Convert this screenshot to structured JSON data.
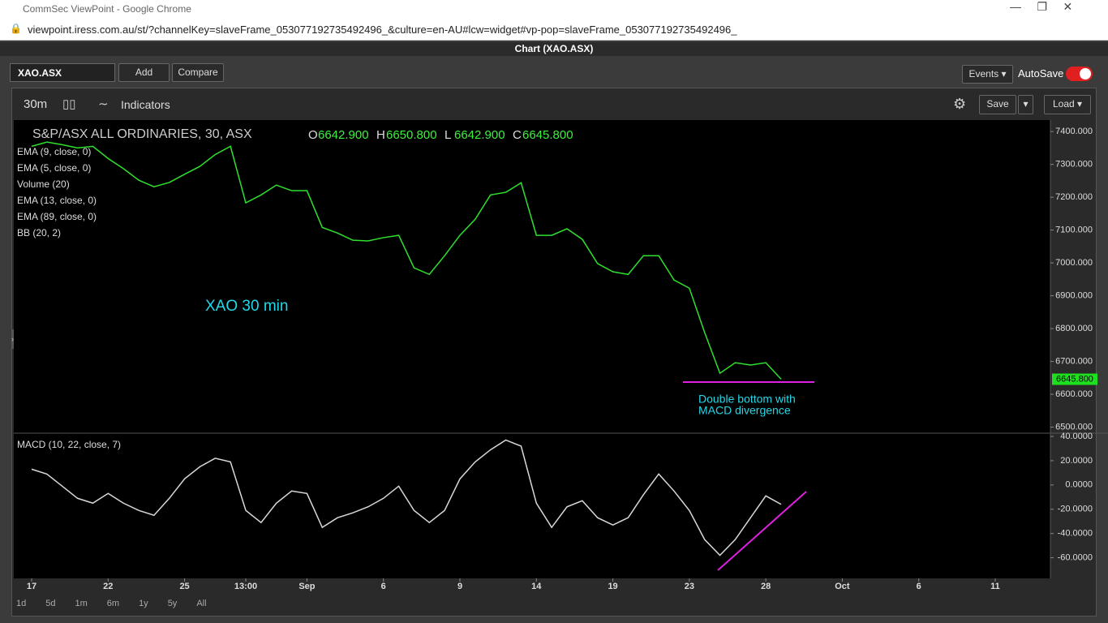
{
  "window": {
    "title": "CommSec ViewPoint - Google Chrome",
    "url": "viewpoint.iress.com.au/st/?channelKey=slaveFrame_053077192735492496_&culture=en-AU#lcw=widget#vp-pop=slaveFrame_053077192735492496_"
  },
  "panel": {
    "title": "Chart (XAO.ASX)",
    "symbol": "XAO.ASX",
    "add": "Add",
    "compare": "Compare",
    "events": "Events",
    "autosave": "AutoSave"
  },
  "toolbar": {
    "interval": "30m",
    "indicators": "Indicators",
    "save": "Save",
    "load": "Load"
  },
  "ranges": [
    "1d",
    "5d",
    "1m",
    "6m",
    "1y",
    "5y",
    "All"
  ],
  "legend": {
    "instrument": "S&P/ASX ALL ORDINARIES, 30, ASX",
    "open_key": "O",
    "open": "6642.900",
    "high_key": "H",
    "high": "6650.800",
    "low_key": "L",
    "low": "6642.900",
    "close_key": "C",
    "close": "6645.800",
    "indicators": [
      "EMA (9, close, 0)",
      "EMA (5, close, 0)",
      "Volume (20)",
      "EMA (13, close, 0)",
      "EMA (89, close, 0)",
      "BB (20, 2)"
    ]
  },
  "chart_data": [
    {
      "type": "line",
      "color": "#2fe02f",
      "categories": [
        "17",
        null,
        null,
        null,
        null,
        "22",
        null,
        null,
        null,
        null,
        "25",
        null,
        null,
        null,
        "13:00",
        null,
        null,
        null,
        "Sep",
        null,
        null,
        null,
        null,
        "6",
        null,
        null,
        null,
        null,
        "9",
        null,
        null,
        null,
        null,
        "14",
        null,
        null,
        null,
        null,
        "19",
        null,
        null,
        null,
        null,
        "23",
        null,
        null,
        null,
        null,
        "28",
        null,
        null,
        null,
        null,
        "Oct",
        null,
        null,
        null,
        null,
        "6",
        null,
        null,
        null,
        null,
        "11",
        null,
        null,
        null
      ],
      "values": [
        7355,
        7368,
        7360,
        7350,
        7355,
        7318,
        7287,
        7252,
        7232,
        7245,
        7270,
        7294,
        7330,
        7355,
        7183,
        7207,
        7237,
        7220,
        7220,
        7108,
        7091,
        7069,
        7067,
        7077,
        7084,
        6985,
        6965,
        7022,
        7084,
        7133,
        7207,
        7215,
        7244,
        7084,
        7084,
        7104,
        7072,
        6998,
        6973,
        6965,
        7022,
        7022,
        6948,
        6923,
        6788,
        6664,
        6696,
        6689,
        6696,
        6646,
        null,
        null,
        null,
        null,
        null,
        null,
        null,
        null,
        null,
        null,
        null,
        null,
        null,
        null,
        null,
        null,
        null
      ],
      "ylim": [
        6484,
        7435
      ],
      "yticks": [
        {
          "value": 7400,
          "label": "7400.000"
        },
        {
          "value": 7300,
          "label": "7300.000"
        },
        {
          "value": 7200,
          "label": "7200.000"
        },
        {
          "value": 7100,
          "label": "7100.000"
        },
        {
          "value": 7000,
          "label": "7000.000"
        },
        {
          "value": 6900,
          "label": "6900.000"
        },
        {
          "value": 6800,
          "label": "6800.000"
        },
        {
          "value": 6700,
          "label": "6700.000"
        },
        {
          "value": 6600,
          "label": "6600.000"
        },
        {
          "value": 6500,
          "label": "6500.000"
        }
      ],
      "last_price": {
        "value": 6645.8,
        "label": "6645.800"
      },
      "annotations": [
        "XAO 30 min",
        "Double bottom with",
        "MACD divergence"
      ]
    },
    {
      "type": "line",
      "title": "MACD (10, 22, close, 7)",
      "color": "#d8d8d8",
      "values": [
        13,
        9,
        -1,
        -11,
        -15,
        -7,
        -15,
        -21,
        -25,
        -11,
        5,
        15,
        22,
        19,
        -21,
        -31,
        -15,
        -5,
        -7,
        -35,
        -27,
        -23,
        -18,
        -11,
        -1,
        -21,
        -31,
        -21,
        5,
        19,
        29,
        37,
        32,
        -15,
        -35,
        -18,
        -13,
        -27,
        -33,
        -27,
        -8,
        9,
        -5,
        -21,
        -45,
        -58,
        -45,
        -27,
        -9,
        -16,
        null,
        null,
        null,
        null,
        null,
        null,
        null,
        null,
        null,
        null,
        null,
        null,
        null,
        null,
        null,
        null,
        null
      ],
      "ylim": [
        -77,
        42
      ],
      "yticks": [
        {
          "value": 40,
          "label": "40.0000"
        },
        {
          "value": 20,
          "label": "20.0000"
        },
        {
          "value": 0,
          "label": "0.0000"
        },
        {
          "value": -20,
          "label": "-20.0000"
        },
        {
          "value": -40,
          "label": "-40.0000"
        },
        {
          "value": -60,
          "label": "-60.0000"
        }
      ]
    }
  ]
}
